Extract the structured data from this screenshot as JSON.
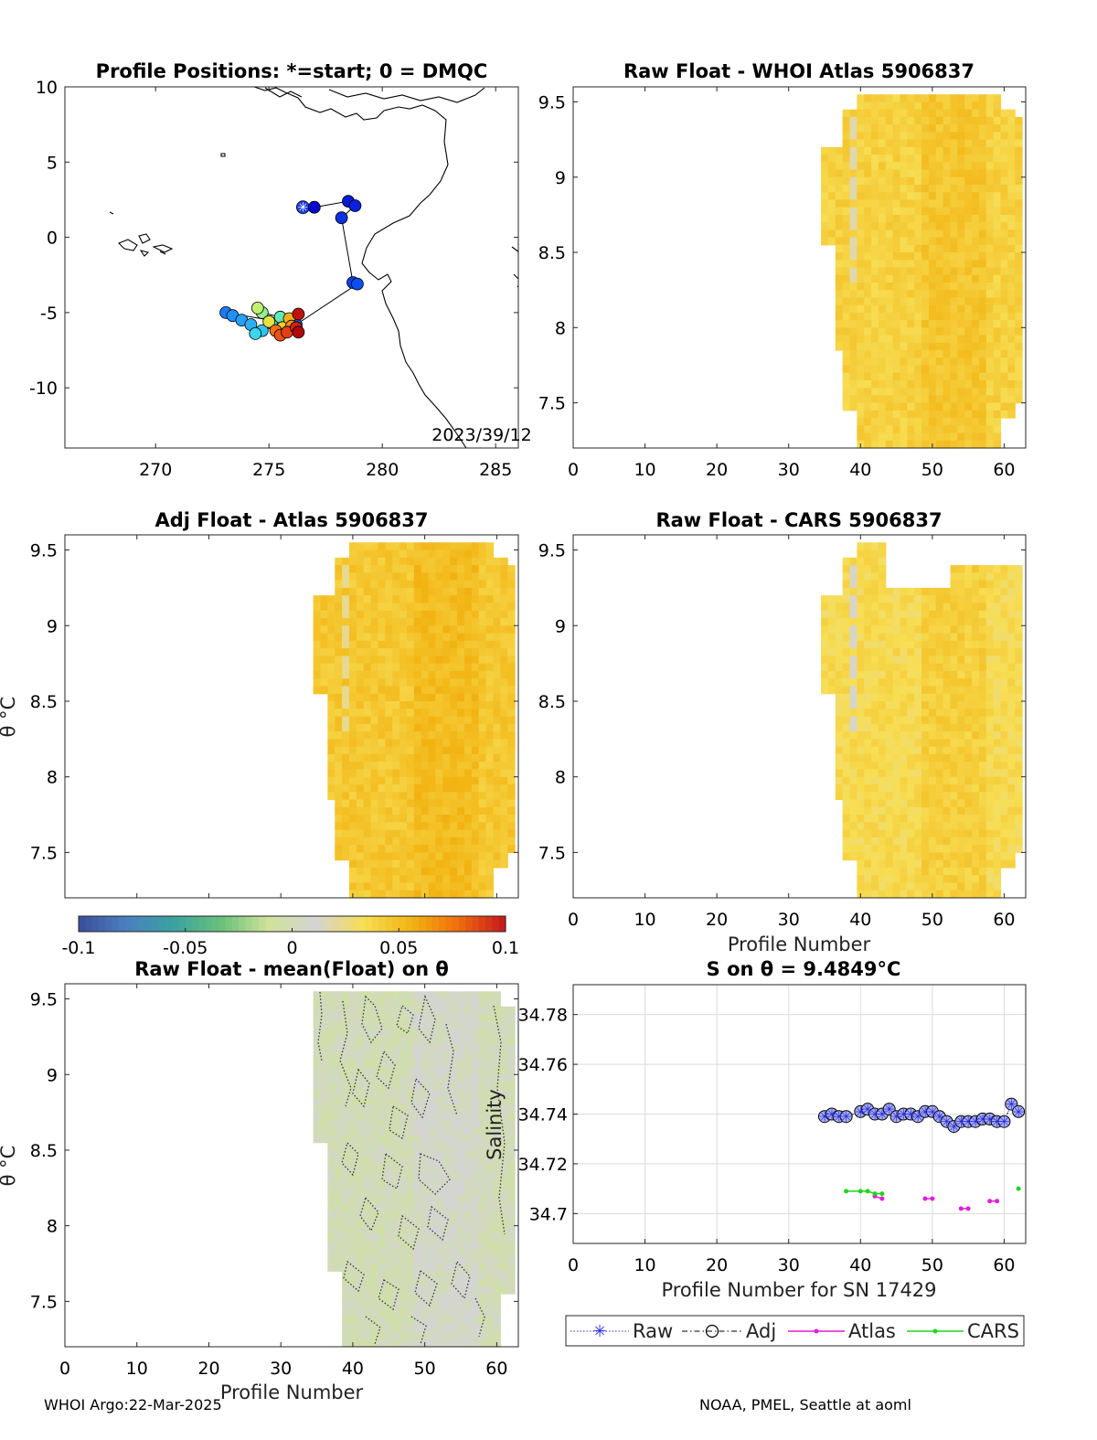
{
  "colors": {
    "diverging_map": [
      "#3b4e9a",
      "#4a7fc0",
      "#3aa3a0",
      "#68c07a",
      "#cfe29a",
      "#d4d4d4",
      "#f7de55",
      "#f2b413",
      "#f06d0f",
      "#c4161c"
    ],
    "raw": "#2b2bd9",
    "atlas": "#e11fd8",
    "cars": "#1fd61f"
  },
  "footer": {
    "left": "WHOI Argo:22-Mar-2025",
    "right": "NOAA, PMEL, Seattle at aoml"
  },
  "chart_data": [
    {
      "type": "scatter",
      "title": "Profile Positions: *=start; 0 = DMQC",
      "xlim": [
        266,
        286
      ],
      "ylim": [
        -14,
        10
      ],
      "xticks": [
        "270",
        "275",
        "280",
        "285"
      ],
      "yticks": [
        "10",
        "5",
        "0",
        "-5",
        "-10"
      ],
      "annotation": "2023/39/12",
      "track": [
        {
          "lon": 276.5,
          "lat": 2.0
        },
        {
          "lon": 277.0,
          "lat": 2.0
        },
        {
          "lon": 278.5,
          "lat": 2.4
        },
        {
          "lon": 278.8,
          "lat": 2.1
        },
        {
          "lon": 278.2,
          "lat": 1.3
        },
        {
          "lon": 278.7,
          "lat": -3.0
        },
        {
          "lon": 278.9,
          "lat": -3.1
        },
        {
          "lon": 276.2,
          "lat": -5.8
        },
        {
          "lon": 273.1,
          "lat": -5.0
        },
        {
          "lon": 273.4,
          "lat": -5.2
        },
        {
          "lon": 273.8,
          "lat": -5.5
        },
        {
          "lon": 274.2,
          "lat": -5.8
        },
        {
          "lon": 274.7,
          "lat": -6.2
        },
        {
          "lon": 274.4,
          "lat": -6.4
        },
        {
          "lon": 275.1,
          "lat": -5.7
        },
        {
          "lon": 275.5,
          "lat": -5.3
        },
        {
          "lon": 274.7,
          "lat": -5.0
        },
        {
          "lon": 274.5,
          "lat": -4.7
        },
        {
          "lon": 275.0,
          "lat": -5.6
        },
        {
          "lon": 275.6,
          "lat": -6.0
        },
        {
          "lon": 275.9,
          "lat": -5.4
        },
        {
          "lon": 276.0,
          "lat": -5.9
        },
        {
          "lon": 275.3,
          "lat": -6.2
        },
        {
          "lon": 275.5,
          "lat": -6.5
        },
        {
          "lon": 275.8,
          "lat": -6.3
        },
        {
          "lon": 276.2,
          "lat": -6.0
        },
        {
          "lon": 276.3,
          "lat": -5.1
        },
        {
          "lon": 276.3,
          "lat": -6.3
        }
      ]
    },
    {
      "type": "heatmap",
      "title": "Raw Float - WHOI Atlas  5906837",
      "xlim": [
        0,
        63
      ],
      "ylim": [
        7.2,
        9.6
      ],
      "xticks": [
        "0",
        "10",
        "20",
        "30",
        "40",
        "50",
        "60"
      ],
      "yticks": [
        "9.5",
        "9",
        "8.5",
        "8",
        "7.5"
      ],
      "value_range": [
        -0.1,
        0.1
      ],
      "typical_value": 0.04
    },
    {
      "type": "heatmap",
      "title": "Adj Float - Atlas  5906837",
      "xlim": [
        0,
        63
      ],
      "ylim": [
        7.2,
        9.6
      ],
      "yticks": [
        "9.5",
        "9",
        "8.5",
        "8",
        "7.5"
      ],
      "ylabel": "θ °C",
      "value_range": [
        -0.1,
        0.1
      ],
      "typical_value": 0.045
    },
    {
      "type": "heatmap",
      "title": "Raw Float - CARS  5906837",
      "xlim": [
        0,
        63
      ],
      "ylim": [
        7.2,
        9.6
      ],
      "xticks": [
        "0",
        "10",
        "20",
        "30",
        "40",
        "50",
        "60"
      ],
      "yticks": [
        "9.5",
        "9",
        "8.5",
        "8",
        "7.5"
      ],
      "xlabel": "Profile Number",
      "value_range": [
        -0.1,
        0.1
      ],
      "typical_value": 0.035
    },
    {
      "type": "heatmap",
      "title": "Raw Float - mean(Float) on θ",
      "xlim": [
        0,
        63
      ],
      "ylim": [
        7.2,
        9.6
      ],
      "xticks": [
        "0",
        "10",
        "20",
        "30",
        "40",
        "50",
        "60"
      ],
      "yticks": [
        "9.5",
        "9",
        "8.5",
        "8",
        "7.5"
      ],
      "xlabel": "Profile Number",
      "ylabel": "θ °C",
      "value_range": [
        -0.1,
        0.1
      ],
      "typical_value": 0.0
    },
    {
      "type": "line",
      "title": "S on θ = 9.4849°C",
      "xlim": [
        0,
        63
      ],
      "ylim": [
        34.688,
        34.792
      ],
      "xticks": [
        "0",
        "10",
        "20",
        "30",
        "40",
        "50",
        "60"
      ],
      "yticks": [
        "34.78",
        "34.76",
        "34.74",
        "34.72",
        "34.7"
      ],
      "xlabel": "Profile Number for SN 17429",
      "ylabel": "Salinity",
      "grid": true,
      "legend": "bottom",
      "series": [
        {
          "name": "Raw",
          "x": [
            35,
            36,
            37,
            38,
            40,
            41,
            42,
            43,
            44,
            45,
            46,
            47,
            48,
            49,
            50,
            51,
            52,
            53,
            54,
            55,
            56,
            57,
            58,
            59,
            60,
            61,
            62
          ],
          "y": [
            34.739,
            34.74,
            34.739,
            34.739,
            34.741,
            34.742,
            34.74,
            34.74,
            34.742,
            34.739,
            34.74,
            34.74,
            34.739,
            34.741,
            34.741,
            34.739,
            34.737,
            34.735,
            34.737,
            34.737,
            34.737,
            34.738,
            34.738,
            34.737,
            34.737,
            34.744,
            34.741
          ]
        },
        {
          "name": "Adj",
          "x": [
            35,
            36,
            37,
            38,
            40,
            41,
            42,
            43,
            44,
            45,
            46,
            47,
            48,
            49,
            50,
            51,
            52,
            53,
            54,
            55,
            56,
            57,
            58,
            59,
            60,
            61,
            62
          ],
          "y": [
            34.739,
            34.74,
            34.739,
            34.739,
            34.741,
            34.742,
            34.74,
            34.74,
            34.742,
            34.739,
            34.74,
            34.74,
            34.739,
            34.741,
            34.741,
            34.739,
            34.737,
            34.735,
            34.737,
            34.737,
            34.737,
            34.738,
            34.738,
            34.737,
            34.737,
            34.744,
            34.741
          ]
        },
        {
          "name": "Atlas",
          "x": [
            42,
            43,
            49,
            50,
            54,
            55,
            58,
            59
          ],
          "y": [
            34.707,
            34.706,
            34.706,
            34.706,
            34.702,
            34.702,
            34.705,
            34.705
          ]
        },
        {
          "name": "CARS",
          "x": [
            38,
            40,
            41,
            42,
            43,
            62
          ],
          "y": [
            34.709,
            34.709,
            34.709,
            34.708,
            34.708,
            34.71
          ]
        }
      ]
    }
  ],
  "colorbar": {
    "ticks": [
      "-0.1",
      "-0.05",
      "0",
      "0.05",
      "0.1"
    ],
    "range": [
      -0.1,
      0.1
    ]
  }
}
